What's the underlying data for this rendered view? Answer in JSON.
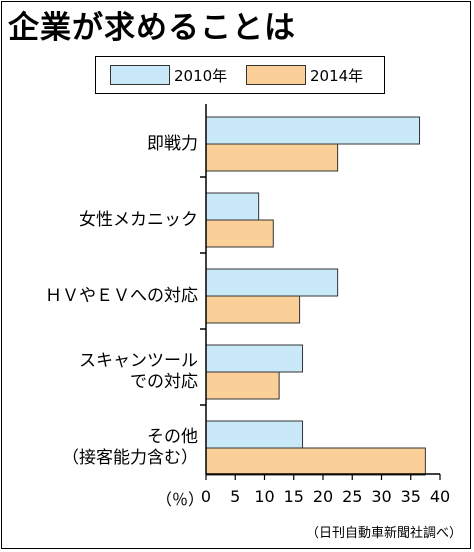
{
  "chart_data": {
    "type": "bar",
    "orientation": "horizontal",
    "title": "企業が求めることは",
    "categories": [
      [
        "即戦力"
      ],
      [
        "女性メカニック"
      ],
      [
        "ＨＶやＥＶへの対応"
      ],
      [
        "スキャンツール",
        "での対応"
      ],
      [
        "その他",
        "（接客能力含む）"
      ]
    ],
    "series": [
      {
        "name": "2010年",
        "color": "#c9e8f8",
        "values": [
          36.5,
          9,
          22.5,
          16.5,
          16.5
        ]
      },
      {
        "name": "2014年",
        "color": "#fbcf98",
        "values": [
          22.5,
          11.5,
          16,
          12.5,
          37.5
        ]
      }
    ],
    "xlim": [
      0,
      40
    ],
    "xticks": [
      "0",
      "5",
      "10",
      "15",
      "20",
      "25",
      "30",
      "35",
      "40"
    ],
    "xlabel": "（％）",
    "grid": false,
    "legend": "top"
  },
  "source": "（日刊自動車新聞社調べ）"
}
